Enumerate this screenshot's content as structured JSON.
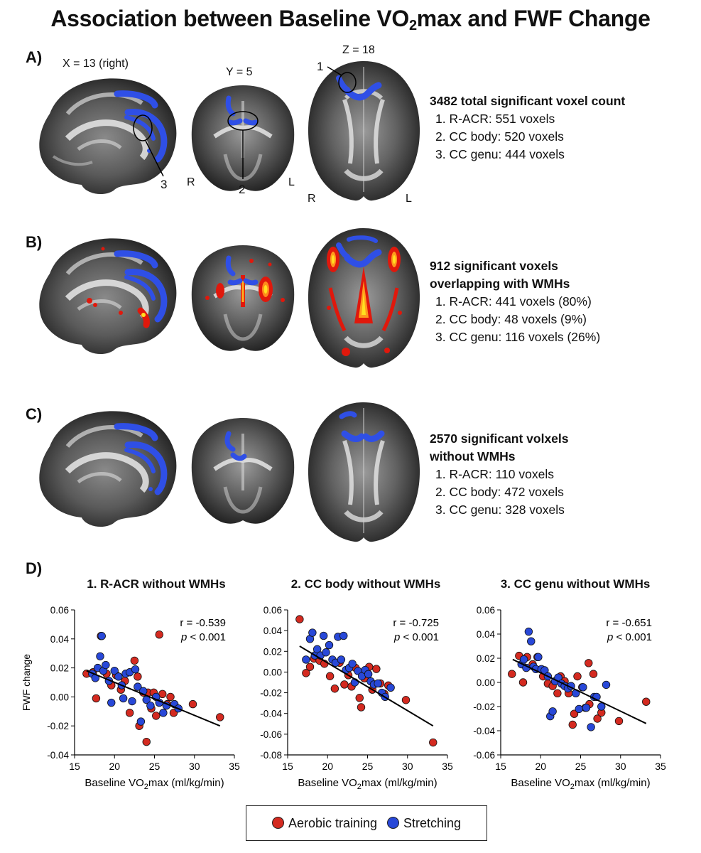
{
  "figure": {
    "title_pre": "Association between Baseline VO",
    "title_sub": "2",
    "title_post": "max and FWF Change"
  },
  "panels": {
    "a": {
      "label": "A)",
      "coord_x": "X = 13 (right)",
      "coord_y": "Y = 5",
      "coord_z": "Z = 18",
      "callouts": [
        "1",
        "2",
        "3"
      ],
      "orient": {
        "r": "R",
        "l": "L"
      },
      "header": "3482 total significant voxel count",
      "items": [
        "1. R-ACR: 551 voxels",
        "2. CC body: 520 voxels",
        "3. CC genu: 444 voxels"
      ]
    },
    "b": {
      "label": "B)",
      "header_1": "912 significant voxels",
      "header_2": "overlapping with WMHs",
      "items": [
        "1. R-ACR: 441 voxels (80%)",
        "2. CC body: 48 voxels (9%)",
        "3. CC genu: 116 voxels (26%)"
      ]
    },
    "c": {
      "label": "C)",
      "header_1": "2570 significant volxels",
      "header_2": "without WMHs",
      "items": [
        "1. R-ACR: 110 voxels",
        "2. CC body: 472 voxels",
        "3. CC genu: 328 voxels"
      ]
    },
    "d": {
      "label": "D)"
    }
  },
  "colors": {
    "aerobic": "#d42a20",
    "stretching": "#2848d8",
    "tract_blue": "#2f4fe6",
    "wmh_red": "#e0180c",
    "wmh_yellow": "#ffe020"
  },
  "legend": {
    "aerobic": "Aerobic training",
    "stretching": "Stretching"
  },
  "chart_data": [
    {
      "type": "scatter",
      "title": "1. R-ACR without WMHs",
      "xlabel_pre": "Baseline VO",
      "xlabel_sub": "2",
      "xlabel_post": "max (ml/kg/min)",
      "ylabel": "FWF change",
      "xlim": [
        15,
        35
      ],
      "ylim": [
        -0.04,
        0.06
      ],
      "xticks": [
        15,
        20,
        25,
        30,
        35
      ],
      "yticks": [
        "-0.04",
        "-0.02",
        "0.00",
        "0.02",
        "0.04",
        "0.06"
      ],
      "yvals": [
        -0.04,
        -0.02,
        0,
        0.02,
        0.04,
        0.06
      ],
      "annotation_r": "r = -0.539",
      "annotation_p": "< 0.001",
      "annotation_p_italic": "p",
      "trend": [
        [
          16.5,
          0.018
        ],
        [
          33.2,
          -0.02
        ]
      ],
      "series": [
        {
          "name": "Aerobic training",
          "color_key": "aerobic",
          "points": [
            [
              16.5,
              0.016
            ],
            [
              17.3,
              0.017
            ],
            [
              17.7,
              -0.001
            ],
            [
              18.3,
              0.042
            ],
            [
              19.0,
              0.016
            ],
            [
              19.6,
              0.008
            ],
            [
              20.2,
              0.015
            ],
            [
              20.8,
              0.005
            ],
            [
              21.3,
              0.011
            ],
            [
              21.9,
              -0.011
            ],
            [
              22.5,
              0.025
            ],
            [
              22.9,
              0.014
            ],
            [
              23.1,
              -0.02
            ],
            [
              23.6,
              0.003
            ],
            [
              24.0,
              -0.031
            ],
            [
              24.2,
              0.003
            ],
            [
              24.6,
              -0.008
            ],
            [
              24.9,
              0.003
            ],
            [
              25.2,
              -0.013
            ],
            [
              25.6,
              0.043
            ],
            [
              26.0,
              0.002
            ],
            [
              26.6,
              -0.005
            ],
            [
              27.0,
              0.0
            ],
            [
              27.4,
              -0.011
            ],
            [
              29.8,
              -0.005
            ],
            [
              33.2,
              -0.014
            ]
          ]
        },
        {
          "name": "Stretching",
          "color_key": "stretching",
          "points": [
            [
              17.2,
              0.016
            ],
            [
              17.6,
              0.013
            ],
            [
              17.9,
              0.02
            ],
            [
              18.2,
              0.028
            ],
            [
              18.4,
              0.042
            ],
            [
              18.6,
              0.018
            ],
            [
              18.9,
              0.022
            ],
            [
              19.3,
              0.011
            ],
            [
              19.6,
              -0.004
            ],
            [
              20.0,
              0.018
            ],
            [
              20.5,
              0.014
            ],
            [
              20.9,
              0.008
            ],
            [
              21.1,
              -0.001
            ],
            [
              21.4,
              0.016
            ],
            [
              21.9,
              0.017
            ],
            [
              22.2,
              -0.003
            ],
            [
              22.6,
              0.019
            ],
            [
              22.9,
              0.007
            ],
            [
              23.3,
              -0.017
            ],
            [
              23.6,
              0.004
            ],
            [
              24.0,
              -0.002
            ],
            [
              24.5,
              -0.006
            ],
            [
              25.2,
              0.0
            ],
            [
              25.6,
              -0.004
            ],
            [
              26.1,
              -0.011
            ],
            [
              26.5,
              -0.006
            ],
            [
              27.5,
              -0.005
            ],
            [
              28.0,
              -0.008
            ]
          ]
        }
      ]
    },
    {
      "type": "scatter",
      "title": "2. CC body without WMHs",
      "xlabel_pre": "Baseline VO",
      "xlabel_sub": "2",
      "xlabel_post": "max (ml/kg/min)",
      "ylabel": "",
      "xlim": [
        15,
        35
      ],
      "ylim": [
        -0.08,
        0.06
      ],
      "xticks": [
        15,
        20,
        25,
        30,
        35
      ],
      "yticks": [
        "-0.08",
        "-0.06",
        "-0.04",
        "-0.02",
        "0.00",
        "0.02",
        "0.04",
        "0.06"
      ],
      "yvals": [
        -0.08,
        -0.06,
        -0.04,
        -0.02,
        0,
        0.02,
        0.04,
        0.06
      ],
      "annotation_r": "r = -0.725",
      "annotation_p": "< 0.001",
      "annotation_p_italic": "p",
      "trend": [
        [
          16.5,
          0.025
        ],
        [
          33.2,
          -0.052
        ]
      ],
      "series": [
        {
          "name": "Aerobic training",
          "color_key": "aerobic",
          "points": [
            [
              16.5,
              0.051
            ],
            [
              17.3,
              -0.001
            ],
            [
              17.8,
              0.005
            ],
            [
              18.3,
              0.013
            ],
            [
              19.0,
              0.011
            ],
            [
              19.6,
              0.008
            ],
            [
              20.3,
              -0.004
            ],
            [
              20.9,
              -0.016
            ],
            [
              21.5,
              0.009
            ],
            [
              22.1,
              -0.012
            ],
            [
              22.6,
              -0.003
            ],
            [
              23.0,
              -0.014
            ],
            [
              23.5,
              0.004
            ],
            [
              24.0,
              -0.025
            ],
            [
              24.2,
              -0.034
            ],
            [
              24.6,
              -0.006
            ],
            [
              25.2,
              0.005
            ],
            [
              25.6,
              -0.017
            ],
            [
              26.1,
              0.003
            ],
            [
              26.6,
              -0.011
            ],
            [
              27.1,
              -0.021
            ],
            [
              27.6,
              -0.013
            ],
            [
              29.8,
              -0.027
            ],
            [
              33.2,
              -0.068
            ]
          ]
        },
        {
          "name": "Stretching",
          "color_key": "stretching",
          "points": [
            [
              17.3,
              0.012
            ],
            [
              17.8,
              0.032
            ],
            [
              18.1,
              0.038
            ],
            [
              18.4,
              0.016
            ],
            [
              18.7,
              0.022
            ],
            [
              19.1,
              0.016
            ],
            [
              19.5,
              0.035
            ],
            [
              19.8,
              0.019
            ],
            [
              20.2,
              0.026
            ],
            [
              20.6,
              0.012
            ],
            [
              21.0,
              0.009
            ],
            [
              21.3,
              0.034
            ],
            [
              21.7,
              0.012
            ],
            [
              22.0,
              0.035
            ],
            [
              22.3,
              0.002
            ],
            [
              22.7,
              0.004
            ],
            [
              23.1,
              0.008
            ],
            [
              23.4,
              -0.01
            ],
            [
              23.8,
              0.001
            ],
            [
              24.3,
              -0.004
            ],
            [
              24.7,
              0.002
            ],
            [
              25.1,
              -0.002
            ],
            [
              25.4,
              -0.009
            ],
            [
              25.8,
              -0.012
            ],
            [
              26.3,
              -0.011
            ],
            [
              26.8,
              -0.02
            ],
            [
              27.2,
              -0.024
            ],
            [
              27.9,
              -0.015
            ]
          ]
        }
      ]
    },
    {
      "type": "scatter",
      "title": "3. CC genu without WMHs",
      "xlabel_pre": "Baseline VO",
      "xlabel_sub": "2",
      "xlabel_post": "max (ml/kg/min)",
      "ylabel": "",
      "xlim": [
        15,
        35
      ],
      "ylim": [
        -0.06,
        0.06
      ],
      "xticks": [
        15,
        20,
        25,
        30,
        35
      ],
      "yticks": [
        "-0.06",
        "-0.04",
        "-0.02",
        "0.00",
        "0.02",
        "0.04",
        "0.06"
      ],
      "yvals": [
        -0.06,
        -0.04,
        -0.02,
        0,
        0.02,
        0.04,
        0.06
      ],
      "annotation_r": "r = -0.651",
      "annotation_p": "< 0.001",
      "annotation_p_italic": "p",
      "trend": [
        [
          16.5,
          0.019
        ],
        [
          33.2,
          -0.034
        ]
      ],
      "series": [
        {
          "name": "Aerobic training",
          "color_key": "aerobic",
          "points": [
            [
              16.4,
              0.007
            ],
            [
              17.3,
              0.022
            ],
            [
              17.8,
              0.0
            ],
            [
              18.3,
              0.021
            ],
            [
              19.0,
              0.015
            ],
            [
              19.6,
              0.021
            ],
            [
              20.3,
              0.005
            ],
            [
              20.9,
              -0.001
            ],
            [
              21.5,
              -0.003
            ],
            [
              22.1,
              -0.009
            ],
            [
              22.5,
              0.005
            ],
            [
              23.0,
              0.001
            ],
            [
              23.5,
              -0.009
            ],
            [
              24.0,
              -0.035
            ],
            [
              24.2,
              -0.026
            ],
            [
              24.6,
              0.005
            ],
            [
              25.2,
              -0.004
            ],
            [
              25.6,
              -0.021
            ],
            [
              26.0,
              0.016
            ],
            [
              26.1,
              -0.018
            ],
            [
              26.6,
              0.007
            ],
            [
              27.1,
              -0.03
            ],
            [
              27.6,
              -0.025
            ],
            [
              29.8,
              -0.032
            ],
            [
              33.2,
              -0.016
            ]
          ]
        },
        {
          "name": "Stretching",
          "color_key": "stretching",
          "points": [
            [
              17.6,
              0.015
            ],
            [
              17.9,
              0.019
            ],
            [
              18.2,
              0.012
            ],
            [
              18.5,
              0.042
            ],
            [
              18.8,
              0.034
            ],
            [
              19.1,
              0.013
            ],
            [
              19.4,
              0.011
            ],
            [
              19.7,
              0.021
            ],
            [
              20.1,
              0.011
            ],
            [
              20.5,
              0.01
            ],
            [
              20.9,
              0.005
            ],
            [
              21.2,
              -0.028
            ],
            [
              21.5,
              -0.024
            ],
            [
              21.8,
              0.001
            ],
            [
              22.2,
              0.004
            ],
            [
              22.6,
              -0.001
            ],
            [
              23.0,
              -0.003
            ],
            [
              23.4,
              -0.005
            ],
            [
              23.8,
              -0.003
            ],
            [
              24.4,
              -0.009
            ],
            [
              24.8,
              -0.022
            ],
            [
              25.3,
              -0.004
            ],
            [
              25.7,
              -0.021
            ],
            [
              26.3,
              -0.037
            ],
            [
              26.7,
              -0.012
            ],
            [
              27.0,
              -0.012
            ],
            [
              27.6,
              -0.02
            ],
            [
              28.2,
              -0.002
            ]
          ]
        }
      ]
    }
  ]
}
